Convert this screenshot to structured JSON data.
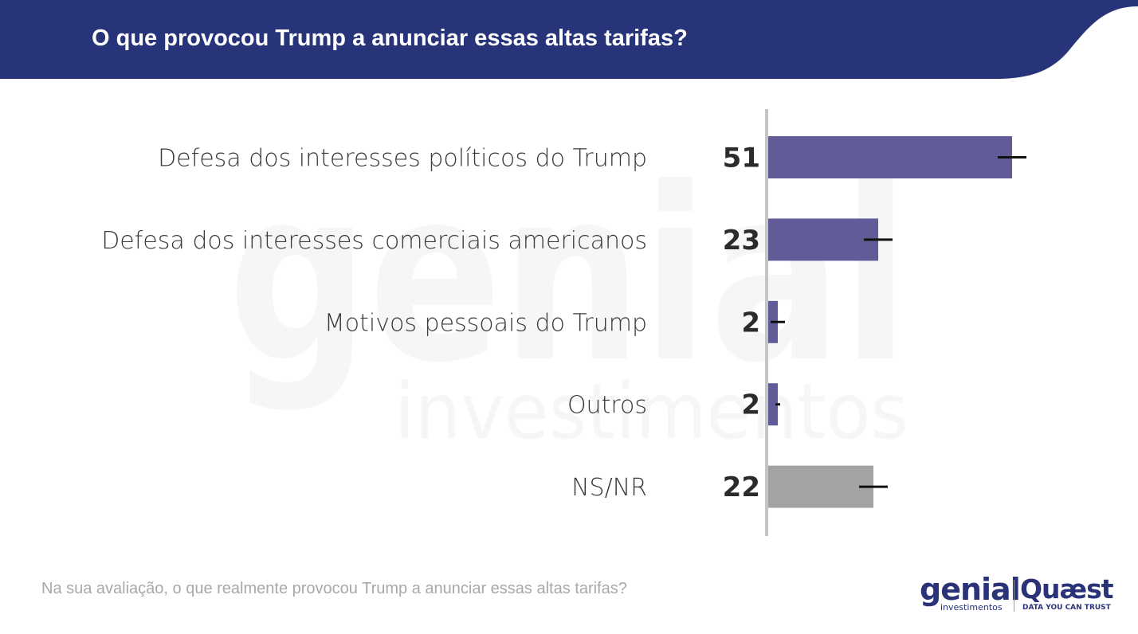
{
  "header": {
    "title": "O que provocou Trump a anunciar essas altas tarifas?",
    "bg_color": "#283479"
  },
  "watermark": {
    "word": "genial",
    "sub": "investimentos"
  },
  "chart_data": {
    "type": "bar",
    "orientation": "horizontal",
    "categories": [
      "Defesa dos interesses políticos do Trump",
      "Defesa dos interesses comerciais americanos",
      "Motivos pessoais do Trump",
      "Outros",
      "NS/NR"
    ],
    "values": [
      51,
      23,
      2,
      2,
      22
    ],
    "value_labels": [
      "51",
      "23",
      "2",
      "2",
      "22"
    ],
    "error_margin": [
      3,
      3,
      1.5,
      0.5,
      3
    ],
    "colors": [
      "#615c97",
      "#615c97",
      "#615c97",
      "#615c97",
      "#a3a3a3"
    ],
    "xlim": [
      0,
      60
    ],
    "axis_color": "#c4c4c4",
    "error_bar_color": "#111111"
  },
  "footer": {
    "question": "Na sua avaliação, o que realmente provocou Trump a anunciar essas altas tarifas?"
  },
  "logos": {
    "genial": {
      "word": "genial",
      "sub": "investimentos"
    },
    "quaest": {
      "word": "Quæst",
      "tagline": "DATA YOU CAN TRUST"
    }
  }
}
